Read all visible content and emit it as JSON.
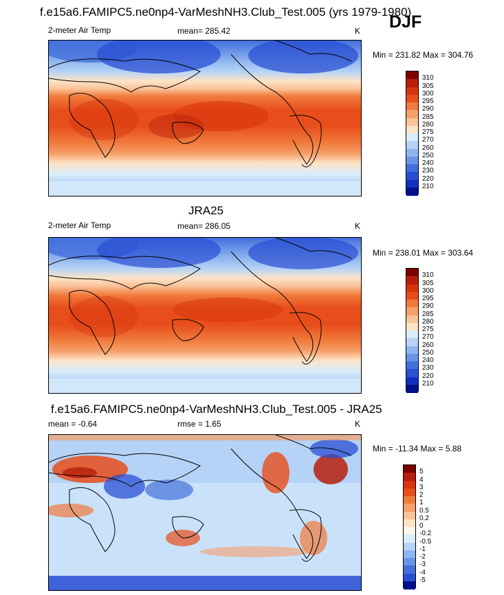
{
  "header": {
    "title": "f.e15a6.FAMIPC5.ne0np4-VarMeshNH3.Club_Test.005 (yrs 1979-1980)",
    "season": "DJF"
  },
  "panels": [
    {
      "title": "",
      "left_label": "2-meter Air Temp",
      "center_label": "mean= 285.42",
      "right_label": "K",
      "minmax": "Min = 231.82 Max = 304.76",
      "field_type": "temperature",
      "colorbar": {
        "labels": [
          "310",
          "305",
          "300",
          "295",
          "290",
          "285",
          "280",
          "275",
          "270",
          "260",
          "250",
          "240",
          "230",
          "220",
          "210"
        ],
        "colors": [
          "#7f0000",
          "#b81e0a",
          "#d8340e",
          "#e84e1b",
          "#f07a3c",
          "#f6a06a",
          "#fac39a",
          "#fde3c6",
          "#d9ecfb",
          "#b5d3f6",
          "#8fb5ef",
          "#6a93e6",
          "#4470dc",
          "#2a4fd3",
          "#1230c4",
          "#00108c"
        ]
      }
    },
    {
      "title": "JRA25",
      "left_label": "2-meter Air Temp",
      "center_label": "mean= 286.05",
      "right_label": "K",
      "minmax": "Min = 238.01 Max = 303.64",
      "field_type": "temperature",
      "colorbar": {
        "labels": [
          "310",
          "305",
          "300",
          "295",
          "290",
          "285",
          "280",
          "275",
          "270",
          "260",
          "250",
          "240",
          "230",
          "220",
          "210"
        ],
        "colors": [
          "#7f0000",
          "#b81e0a",
          "#d8340e",
          "#e84e1b",
          "#f07a3c",
          "#f6a06a",
          "#fac39a",
          "#fde3c6",
          "#d9ecfb",
          "#b5d3f6",
          "#8fb5ef",
          "#6a93e6",
          "#4470dc",
          "#2a4fd3",
          "#1230c4",
          "#00108c"
        ]
      }
    },
    {
      "title": "f.e15a6.FAMIPC5.ne0np4-VarMeshNH3.Club_Test.005 - JRA25",
      "left_label": "mean =  -0.64",
      "center_label": "rmse =   1.65",
      "right_label": "K",
      "minmax": "Min = -11.34 Max =   5.88",
      "field_type": "difference",
      "colorbar": {
        "labels": [
          "5",
          "4",
          "3",
          "2",
          "1",
          "0.5",
          "0.2",
          "0",
          "-0.2",
          "-0.5",
          "-1",
          "-2",
          "-3",
          "-4",
          "-5"
        ],
        "colors": [
          "#7f0000",
          "#b81e0a",
          "#d8340e",
          "#e84e1b",
          "#f07a3c",
          "#f6a06a",
          "#fac39a",
          "#fde3c6",
          "#fdf6ee",
          "#d9ecfb",
          "#b5d3f6",
          "#8fb5ef",
          "#6a93e6",
          "#4470dc",
          "#2a4fd3",
          "#00108c"
        ]
      }
    }
  ]
}
